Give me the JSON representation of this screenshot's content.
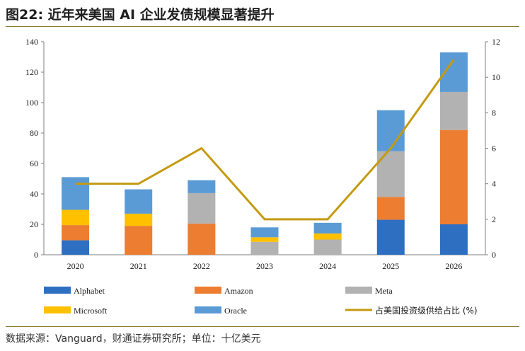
{
  "title": "图22: 近年来美国 AI 企业发债规模显著提升",
  "source": "数据来源：Vanguard，财通证券研究所；单位：十亿美元",
  "chart_data": {
    "type": "bar",
    "stacked": true,
    "categories": [
      "2020",
      "2021",
      "2022",
      "2023",
      "2024",
      "2025",
      "2026"
    ],
    "series": [
      {
        "name": "Alphabet",
        "color": "#2e6fc2",
        "values": [
          9.5,
          0,
          0,
          0,
          0,
          23,
          20
        ]
      },
      {
        "name": "Amazon",
        "color": "#ed7d31",
        "values": [
          10,
          19,
          20.5,
          0,
          0,
          15,
          62
        ]
      },
      {
        "name": "Meta",
        "color": "#b2b2b2",
        "values": [
          0,
          0,
          20,
          8.5,
          10,
          30,
          25
        ]
      },
      {
        "name": "Microsoft",
        "color": "#ffc000",
        "values": [
          10,
          8,
          0,
          3,
          4,
          0,
          0
        ]
      },
      {
        "name": "Oracle",
        "color": "#5b9bd5",
        "values": [
          21.5,
          16,
          8.5,
          6.5,
          7,
          27,
          26
        ]
      }
    ],
    "line_series": {
      "name": "占美国投资级供给占比 (%)",
      "color": "#c49a10",
      "values": [
        4,
        4,
        6,
        2,
        2,
        6,
        11
      ]
    },
    "ylim": [
      0,
      140
    ],
    "yticks": [
      "0",
      "20",
      "40",
      "60",
      "80",
      "100",
      "120",
      "140"
    ],
    "y2lim": [
      0,
      12
    ],
    "y2ticks": [
      "0",
      "2",
      "4",
      "6",
      "8",
      "10",
      "12"
    ],
    "grid": false,
    "legend_position": "bottom"
  }
}
